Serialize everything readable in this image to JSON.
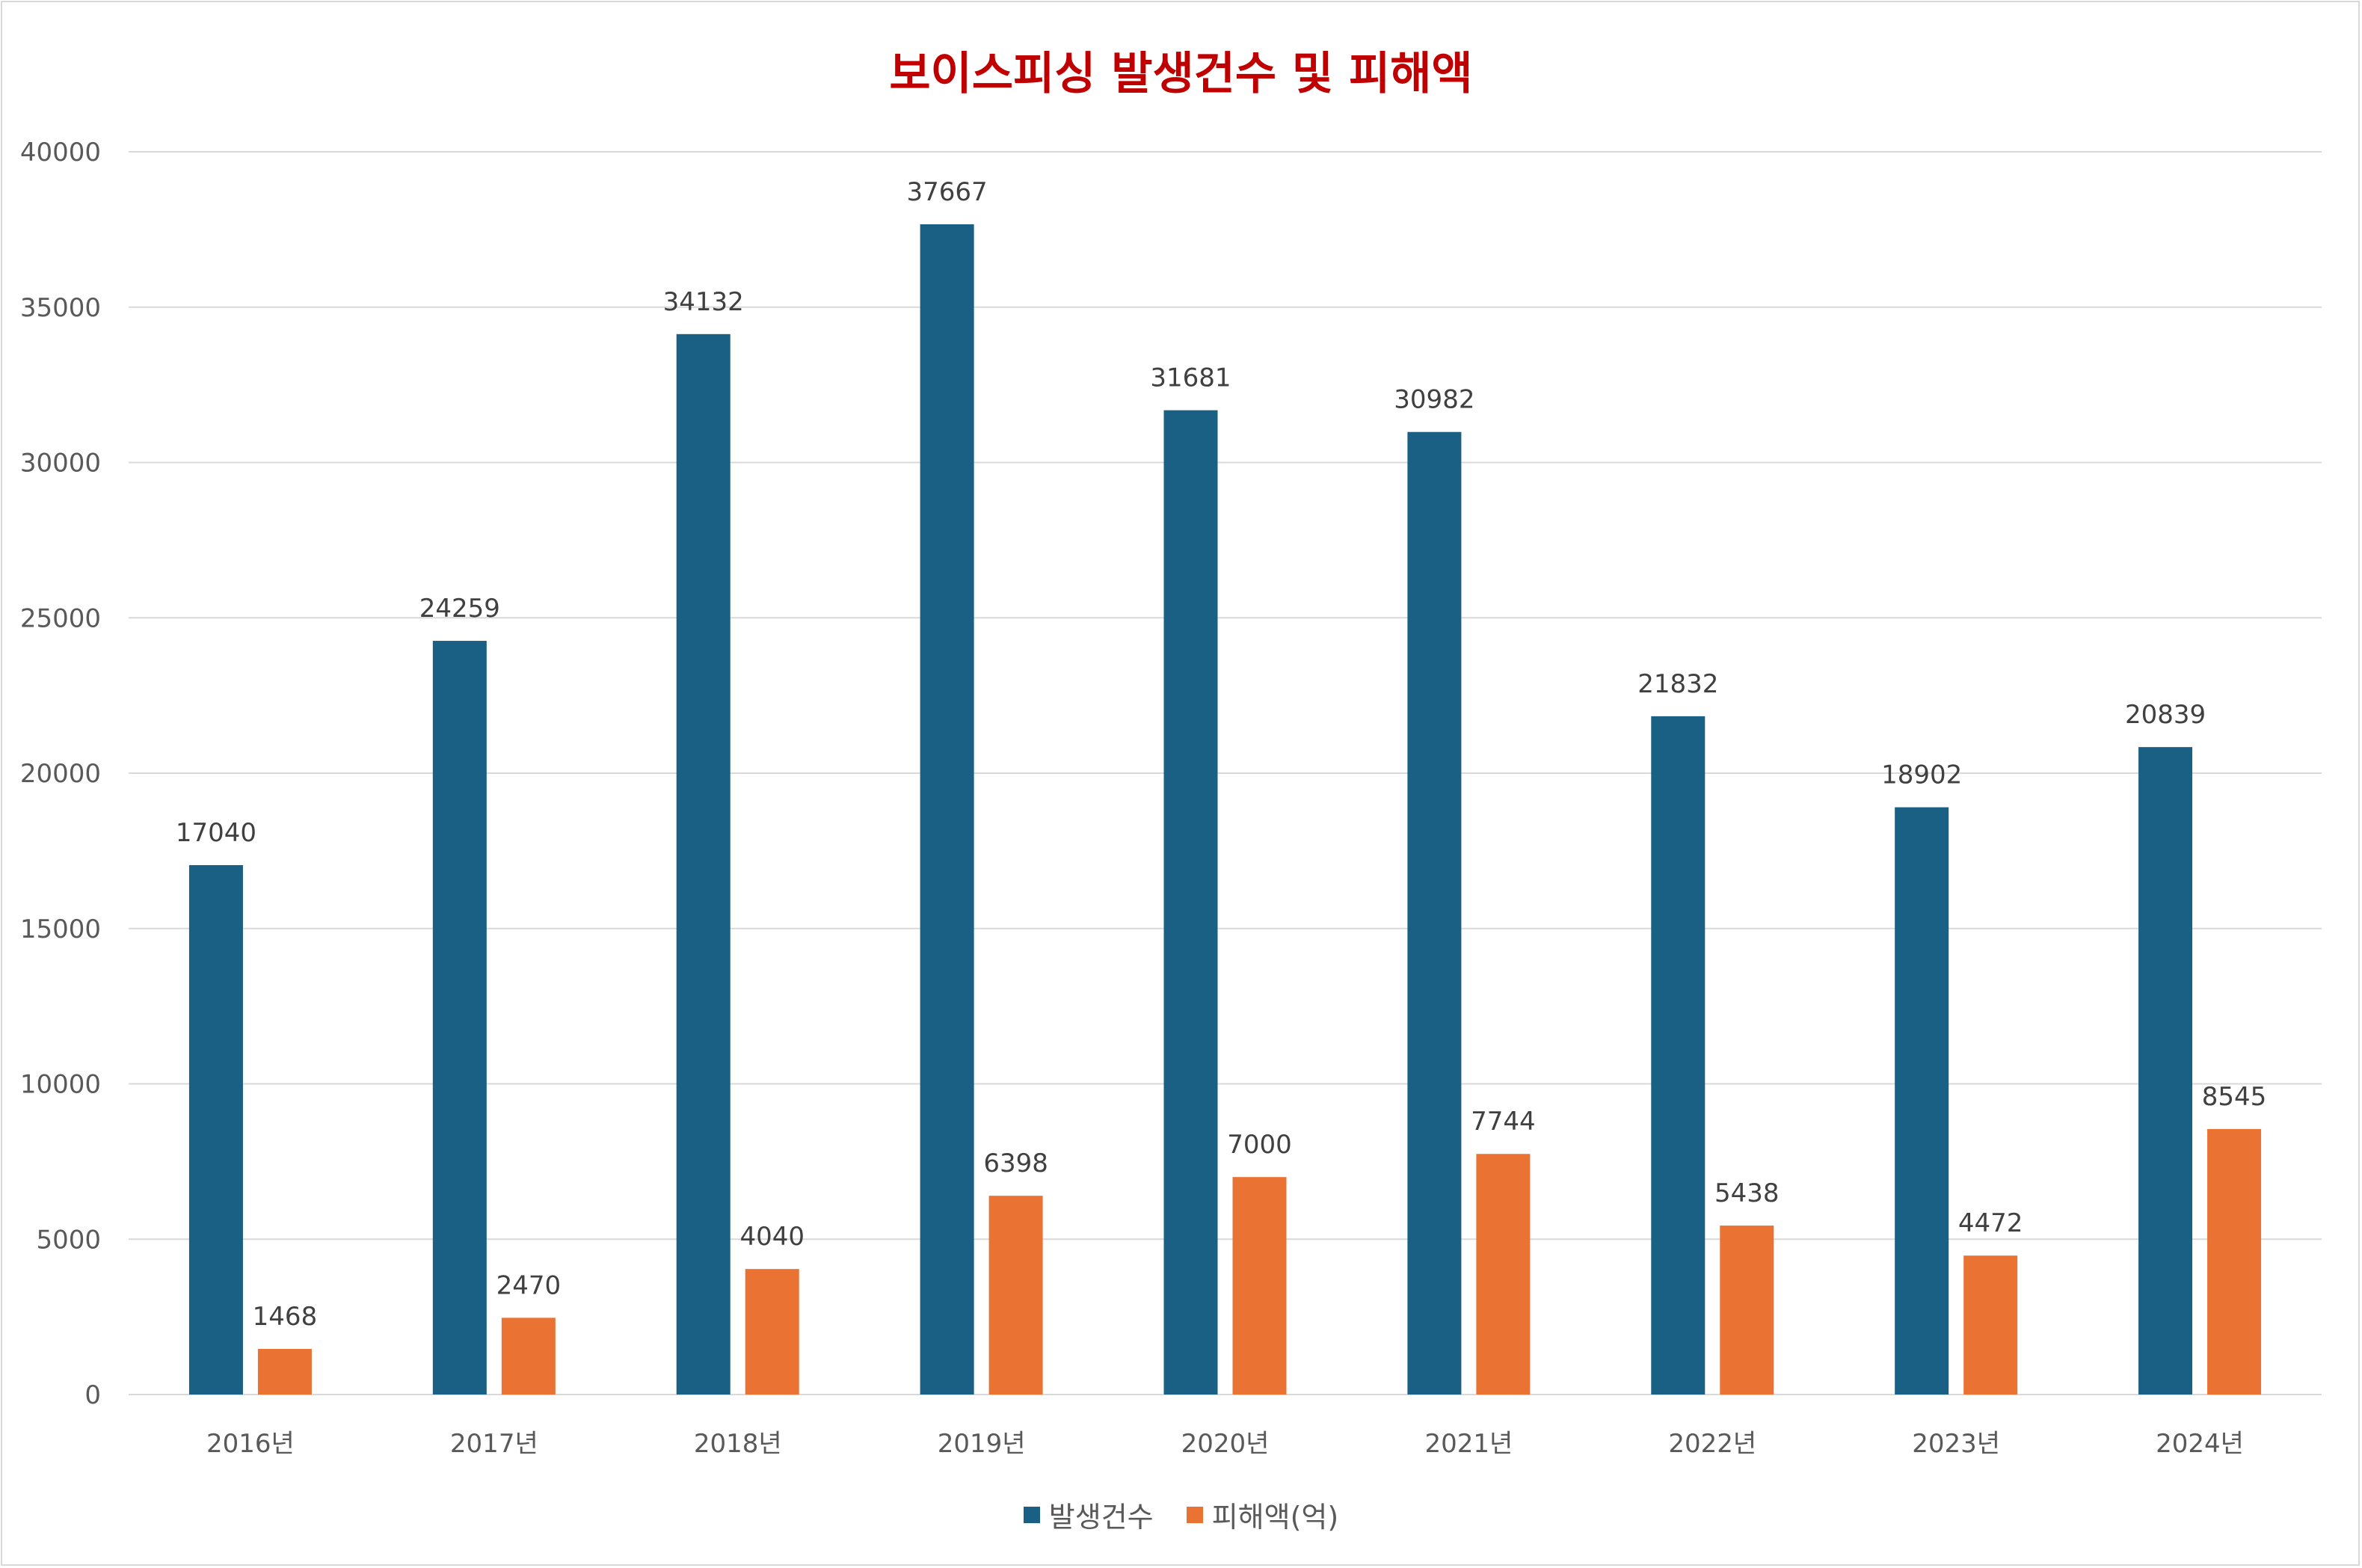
{
  "chart_data": {
    "type": "bar",
    "title": "보이스피싱 발생건수 및 피해액",
    "categories": [
      "2016년",
      "2017년",
      "2018년",
      "2019년",
      "2020년",
      "2021년",
      "2022년",
      "2023년",
      "2024년"
    ],
    "series": [
      {
        "name": "발생건수",
        "color": "#1a5f84",
        "values": [
          17040,
          24259,
          34132,
          37667,
          31681,
          30982,
          21832,
          18902,
          20839
        ]
      },
      {
        "name": "피해액(억)",
        "color": "#ea7333",
        "values": [
          1468,
          2470,
          4040,
          6398,
          7000,
          7744,
          5438,
          4472,
          8545
        ]
      }
    ],
    "ylim": [
      0,
      40000
    ],
    "yticks": [
      0,
      5000,
      10000,
      15000,
      20000,
      25000,
      30000,
      35000,
      40000
    ],
    "xlabel": "",
    "ylabel": "",
    "grid": true,
    "legend": "bottom",
    "gridline_color": "#d9d9d9"
  }
}
